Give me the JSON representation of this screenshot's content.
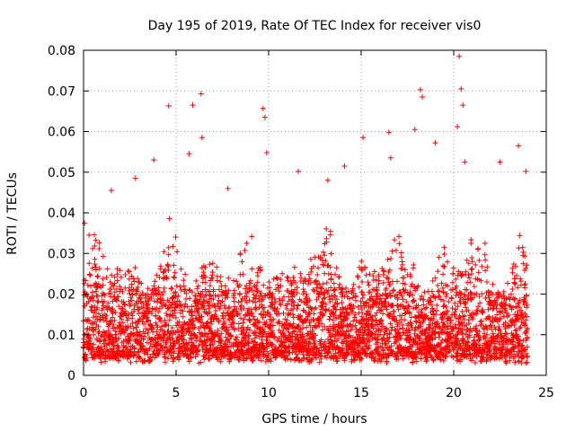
{
  "chart_data": {
    "type": "scatter",
    "title": "Day 195 of 2019, Rate Of TEC Index for receiver vis0",
    "xlabel": "GPS time / hours",
    "ylabel": "ROTI / TECUs",
    "xlim": [
      0,
      25
    ],
    "ylim": [
      0,
      0.08
    ],
    "xticks": [
      0,
      5,
      10,
      15,
      20,
      25
    ],
    "xtick_labels": [
      "0",
      "5",
      "10",
      "15",
      "20",
      "25"
    ],
    "yticks": [
      0,
      0.01,
      0.02,
      0.03,
      0.04,
      0.05,
      0.06,
      0.07,
      0.08
    ],
    "ytick_labels": [
      "0",
      "0.01",
      "0.02",
      "0.03",
      "0.04",
      "0.05",
      "0.06",
      "0.07",
      "0.08"
    ],
    "grid": true,
    "marker": "+",
    "marker_color": "#ff0000",
    "data_x_range_hours": [
      0,
      24
    ],
    "notable_points": [
      {
        "x": 0.05,
        "y": 0.0375
      },
      {
        "x": 0.3,
        "y": 0.0345
      },
      {
        "x": 1.5,
        "y": 0.0455
      },
      {
        "x": 2.8,
        "y": 0.0485
      },
      {
        "x": 3.8,
        "y": 0.053
      },
      {
        "x": 4.6,
        "y": 0.0663
      },
      {
        "x": 5.7,
        "y": 0.0545
      },
      {
        "x": 5.9,
        "y": 0.0665
      },
      {
        "x": 6.35,
        "y": 0.0693
      },
      {
        "x": 6.4,
        "y": 0.0585
      },
      {
        "x": 7.8,
        "y": 0.046
      },
      {
        "x": 9.7,
        "y": 0.0657
      },
      {
        "x": 9.8,
        "y": 0.0635
      },
      {
        "x": 9.9,
        "y": 0.0548
      },
      {
        "x": 11.6,
        "y": 0.0502
      },
      {
        "x": 13.2,
        "y": 0.048
      },
      {
        "x": 14.1,
        "y": 0.0515
      },
      {
        "x": 15.1,
        "y": 0.0585
      },
      {
        "x": 16.5,
        "y": 0.0598
      },
      {
        "x": 16.6,
        "y": 0.0535
      },
      {
        "x": 17.9,
        "y": 0.0605
      },
      {
        "x": 18.2,
        "y": 0.0703
      },
      {
        "x": 18.3,
        "y": 0.0685
      },
      {
        "x": 19.0,
        "y": 0.0572
      },
      {
        "x": 20.2,
        "y": 0.0612
      },
      {
        "x": 20.3,
        "y": 0.0785
      },
      {
        "x": 20.4,
        "y": 0.0705
      },
      {
        "x": 20.5,
        "y": 0.0665
      },
      {
        "x": 20.6,
        "y": 0.0525
      },
      {
        "x": 22.5,
        "y": 0.0525
      },
      {
        "x": 23.5,
        "y": 0.0565
      },
      {
        "x": 23.9,
        "y": 0.0502
      }
    ],
    "dense_band": {
      "x_range": [
        0,
        24
      ],
      "y_floor_range": [
        0.003,
        0.006
      ],
      "typical_upper_range": [
        0.02,
        0.04
      ]
    }
  }
}
